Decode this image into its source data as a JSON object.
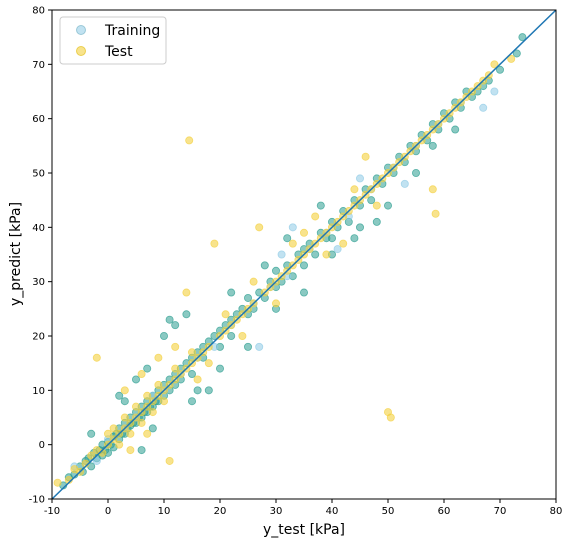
{
  "chart_data": {
    "type": "scatter",
    "title": "",
    "xlabel": "y_test [kPa]",
    "ylabel": "y_predict [kPa]",
    "xlim": [
      -10,
      80
    ],
    "ylim": [
      -10,
      80
    ],
    "xticks": [
      -10,
      0,
      10,
      20,
      30,
      40,
      50,
      60,
      70,
      80
    ],
    "yticks": [
      -10,
      0,
      10,
      20,
      30,
      40,
      50,
      60,
      70,
      80
    ],
    "grid": false,
    "legend": {
      "placement": "top-left",
      "entries": [
        "Training",
        "Test"
      ]
    },
    "reference_line": {
      "name": "",
      "x": [
        -10,
        80
      ],
      "y": [
        -10,
        80
      ],
      "color": "#1f77b4"
    },
    "series": [
      {
        "name": "Training",
        "color": "#2a9d8f",
        "points": [
          [
            -8,
            -7.5
          ],
          [
            -7,
            -6
          ],
          [
            -6,
            -5.5
          ],
          [
            -5,
            -4
          ],
          [
            -4.5,
            -5
          ],
          [
            -4,
            -3
          ],
          [
            -3.5,
            -2.5
          ],
          [
            -3,
            -4
          ],
          [
            -2.5,
            -1.5
          ],
          [
            -2,
            -2.5
          ],
          [
            -1.5,
            -1
          ],
          [
            -1,
            -2
          ],
          [
            -1,
            0
          ],
          [
            -0.5,
            -1
          ],
          [
            0,
            0.5
          ],
          [
            0,
            -1.5
          ],
          [
            0.5,
            0
          ],
          [
            1,
            1.5
          ],
          [
            1,
            -0.5
          ],
          [
            1.5,
            2
          ],
          [
            2,
            1
          ],
          [
            2,
            3
          ],
          [
            2.5,
            2
          ],
          [
            3,
            4
          ],
          [
            3,
            2
          ],
          [
            3.5,
            3
          ],
          [
            4,
            5
          ],
          [
            4,
            3.5
          ],
          [
            4.5,
            4
          ],
          [
            5,
            6
          ],
          [
            5,
            4
          ],
          [
            5.5,
            5
          ],
          [
            6,
            7
          ],
          [
            6,
            5
          ],
          [
            6.5,
            6
          ],
          [
            7,
            8
          ],
          [
            7,
            6
          ],
          [
            7.5,
            7
          ],
          [
            8,
            9
          ],
          [
            8,
            7
          ],
          [
            8.5,
            8
          ],
          [
            9,
            10
          ],
          [
            9,
            8
          ],
          [
            10,
            11
          ],
          [
            10,
            9
          ],
          [
            11,
            12
          ],
          [
            11,
            10
          ],
          [
            12,
            13
          ],
          [
            12,
            11
          ],
          [
            13,
            14
          ],
          [
            13,
            12
          ],
          [
            14,
            15
          ],
          [
            15,
            16
          ],
          [
            15,
            13
          ],
          [
            16,
            17
          ],
          [
            17,
            18
          ],
          [
            17,
            16
          ],
          [
            18,
            19
          ],
          [
            19,
            20
          ],
          [
            20,
            21
          ],
          [
            20,
            18
          ],
          [
            21,
            22
          ],
          [
            22,
            23
          ],
          [
            22,
            20
          ],
          [
            23,
            24
          ],
          [
            24,
            25
          ],
          [
            25,
            24
          ],
          [
            25,
            27
          ],
          [
            26,
            25
          ],
          [
            27,
            28
          ],
          [
            28,
            27
          ],
          [
            29,
            30
          ],
          [
            30,
            29
          ],
          [
            30,
            32
          ],
          [
            31,
            30
          ],
          [
            32,
            33
          ],
          [
            33,
            31
          ],
          [
            34,
            35
          ],
          [
            35,
            33
          ],
          [
            35,
            36
          ],
          [
            36,
            37
          ],
          [
            37,
            35
          ],
          [
            38,
            39
          ],
          [
            39,
            38
          ],
          [
            40,
            41
          ],
          [
            40,
            38
          ],
          [
            41,
            40
          ],
          [
            42,
            43
          ],
          [
            43,
            41
          ],
          [
            44,
            45
          ],
          [
            45,
            44
          ],
          [
            46,
            47
          ],
          [
            47,
            45
          ],
          [
            48,
            49
          ],
          [
            49,
            48
          ],
          [
            50,
            51
          ],
          [
            51,
            50
          ],
          [
            52,
            53
          ],
          [
            53,
            52
          ],
          [
            54,
            55
          ],
          [
            55,
            54
          ],
          [
            56,
            57
          ],
          [
            57,
            56
          ],
          [
            58,
            59
          ],
          [
            59,
            58
          ],
          [
            60,
            61
          ],
          [
            61,
            60
          ],
          [
            62,
            63
          ],
          [
            63,
            62
          ],
          [
            64,
            65
          ],
          [
            65,
            64
          ],
          [
            66,
            65
          ],
          [
            67,
            66
          ],
          [
            68,
            67
          ],
          [
            70,
            69
          ],
          [
            73,
            72
          ],
          [
            74,
            75
          ],
          [
            10,
            20
          ],
          [
            11,
            23
          ],
          [
            12,
            22
          ],
          [
            14,
            24
          ],
          [
            3,
            8
          ],
          [
            5,
            12
          ],
          [
            7,
            14
          ],
          [
            20,
            14
          ],
          [
            25,
            18
          ],
          [
            6,
            -1
          ],
          [
            15,
            8
          ],
          [
            18,
            10
          ],
          [
            28,
            33
          ],
          [
            32,
            38
          ],
          [
            40,
            35
          ],
          [
            45,
            40
          ],
          [
            50,
            44
          ],
          [
            55,
            50
          ],
          [
            48,
            41
          ],
          [
            35,
            28
          ],
          [
            2,
            9
          ],
          [
            -3,
            2
          ],
          [
            8,
            3
          ],
          [
            22,
            28
          ],
          [
            30,
            25
          ],
          [
            38,
            44
          ],
          [
            44,
            38
          ],
          [
            62,
            58
          ],
          [
            58,
            55
          ],
          [
            16,
            10
          ]
        ]
      },
      {
        "name": "Training",
        "color": "#8ecae6",
        "points": [
          [
            -6,
            -4
          ],
          [
            -2,
            -3
          ],
          [
            0,
            1
          ],
          [
            3,
            3
          ],
          [
            5,
            5
          ],
          [
            8,
            9
          ],
          [
            10,
            10
          ],
          [
            13,
            13
          ],
          [
            16,
            16
          ],
          [
            19,
            18
          ],
          [
            22,
            22
          ],
          [
            26,
            26
          ],
          [
            29,
            29
          ],
          [
            32,
            31
          ],
          [
            36,
            36
          ],
          [
            39,
            39
          ],
          [
            43,
            42
          ],
          [
            47,
            47
          ],
          [
            51,
            51
          ],
          [
            55,
            55
          ],
          [
            59,
            59
          ],
          [
            63,
            63
          ],
          [
            67,
            62
          ],
          [
            69,
            65
          ],
          [
            27,
            18
          ],
          [
            31,
            35
          ],
          [
            41,
            36
          ],
          [
            45,
            49
          ],
          [
            53,
            48
          ],
          [
            33,
            40
          ]
        ]
      },
      {
        "name": "Test",
        "color": "#f4d03f",
        "points": [
          [
            -9,
            -7
          ],
          [
            -7,
            -6.5
          ],
          [
            -6,
            -4.5
          ],
          [
            -5,
            -5
          ],
          [
            -4,
            -3.5
          ],
          [
            -3,
            -2
          ],
          [
            -2,
            -1
          ],
          [
            -2,
            16
          ],
          [
            -1,
            -1.5
          ],
          [
            0,
            0
          ],
          [
            0,
            2
          ],
          [
            1,
            1
          ],
          [
            1,
            3
          ],
          [
            2,
            2
          ],
          [
            2,
            0
          ],
          [
            3,
            3
          ],
          [
            3,
            5
          ],
          [
            4,
            4
          ],
          [
            4,
            2
          ],
          [
            5,
            5
          ],
          [
            5,
            7
          ],
          [
            6,
            6
          ],
          [
            6,
            4
          ],
          [
            7,
            7
          ],
          [
            7,
            9
          ],
          [
            8,
            8
          ],
          [
            8,
            6
          ],
          [
            9,
            9
          ],
          [
            9,
            11
          ],
          [
            10,
            10
          ],
          [
            10,
            8
          ],
          [
            11,
            11
          ],
          [
            11,
            -3
          ],
          [
            12,
            12
          ],
          [
            12,
            14
          ],
          [
            13,
            13
          ],
          [
            14,
            14
          ],
          [
            14,
            28
          ],
          [
            14.5,
            56
          ],
          [
            15,
            15
          ],
          [
            15,
            17
          ],
          [
            16,
            16
          ],
          [
            17,
            17
          ],
          [
            18,
            18
          ],
          [
            19,
            37
          ],
          [
            20,
            20
          ],
          [
            21,
            21
          ],
          [
            22,
            22
          ],
          [
            23,
            23
          ],
          [
            24,
            24
          ],
          [
            25,
            25
          ],
          [
            26,
            26
          ],
          [
            27,
            40
          ],
          [
            28,
            28
          ],
          [
            29,
            29
          ],
          [
            30,
            30
          ],
          [
            31,
            31
          ],
          [
            32,
            32
          ],
          [
            33,
            33
          ],
          [
            34,
            34
          ],
          [
            35,
            35
          ],
          [
            36,
            36
          ],
          [
            37,
            37
          ],
          [
            38,
            38
          ],
          [
            39,
            39
          ],
          [
            40,
            40
          ],
          [
            41,
            41
          ],
          [
            42,
            42
          ],
          [
            43,
            43
          ],
          [
            44,
            44
          ],
          [
            45,
            45
          ],
          [
            46,
            46
          ],
          [
            46,
            53
          ],
          [
            47,
            47
          ],
          [
            48,
            48
          ],
          [
            49,
            49
          ],
          [
            50,
            50
          ],
          [
            50,
            6
          ],
          [
            50.5,
            5
          ],
          [
            51,
            51
          ],
          [
            52,
            52
          ],
          [
            53,
            53
          ],
          [
            54,
            54
          ],
          [
            55,
            55
          ],
          [
            56,
            56
          ],
          [
            57,
            57
          ],
          [
            58,
            58
          ],
          [
            58,
            47
          ],
          [
            58.5,
            42.5
          ],
          [
            59,
            59
          ],
          [
            60,
            60
          ],
          [
            61,
            61
          ],
          [
            62,
            62
          ],
          [
            63,
            63
          ],
          [
            64,
            64
          ],
          [
            65,
            65
          ],
          [
            66,
            66
          ],
          [
            67,
            67
          ],
          [
            68,
            68
          ],
          [
            69,
            70
          ],
          [
            72,
            71
          ],
          [
            18,
            15
          ],
          [
            21,
            24
          ],
          [
            24,
            20
          ],
          [
            33,
            37
          ],
          [
            37,
            42
          ],
          [
            42,
            37
          ],
          [
            44,
            47
          ],
          [
            3,
            10
          ],
          [
            6,
            13
          ],
          [
            9,
            16
          ],
          [
            12,
            18
          ],
          [
            16,
            12
          ],
          [
            4,
            -1
          ],
          [
            7,
            2
          ],
          [
            26,
            30
          ],
          [
            30,
            26
          ],
          [
            35,
            39
          ],
          [
            39,
            35
          ],
          [
            48,
            44
          ]
        ]
      }
    ]
  }
}
